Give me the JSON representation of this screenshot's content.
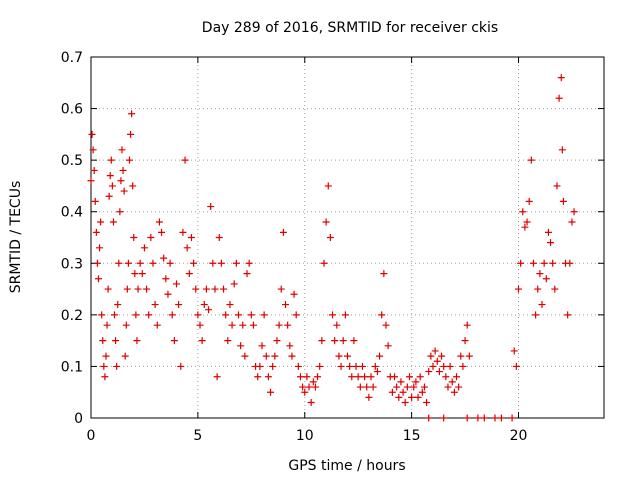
{
  "chart_data": {
    "type": "scatter",
    "title": "Day 289 of 2016, SRMTID for receiver ckis",
    "xlabel": "GPS time / hours",
    "ylabel": "SRMTID / TECUs",
    "xlim": [
      0,
      24
    ],
    "ylim": [
      0,
      0.7
    ],
    "x_ticks": [
      0,
      5,
      10,
      15,
      20
    ],
    "x_tick_labels": [
      "0",
      "5",
      "10",
      "15",
      "20"
    ],
    "y_ticks": [
      0,
      0.1,
      0.2,
      0.3,
      0.4,
      0.5,
      0.6,
      0.7
    ],
    "y_tick_labels": [
      "0",
      "0.1",
      "0.2",
      "0.3",
      "0.4",
      "0.5",
      "0.6",
      "0.7"
    ],
    "grid": true,
    "marker": "+",
    "color": "#e00000",
    "series": [
      {
        "name": "SRMTID",
        "points": [
          [
            0.0,
            0.46
          ],
          [
            0.05,
            0.55
          ],
          [
            0.1,
            0.52
          ],
          [
            0.15,
            0.48
          ],
          [
            0.2,
            0.42
          ],
          [
            0.25,
            0.36
          ],
          [
            0.3,
            0.3
          ],
          [
            0.35,
            0.27
          ],
          [
            0.4,
            0.33
          ],
          [
            0.45,
            0.38
          ],
          [
            0.5,
            0.2
          ],
          [
            0.55,
            0.15
          ],
          [
            0.6,
            0.1
          ],
          [
            0.65,
            0.08
          ],
          [
            0.7,
            0.12
          ],
          [
            0.75,
            0.18
          ],
          [
            0.8,
            0.25
          ],
          [
            0.85,
            0.43
          ],
          [
            0.9,
            0.47
          ],
          [
            0.95,
            0.5
          ],
          [
            1.0,
            0.45
          ],
          [
            1.05,
            0.38
          ],
          [
            1.1,
            0.2
          ],
          [
            1.15,
            0.15
          ],
          [
            1.2,
            0.1
          ],
          [
            1.25,
            0.22
          ],
          [
            1.3,
            0.3
          ],
          [
            1.35,
            0.4
          ],
          [
            1.4,
            0.46
          ],
          [
            1.45,
            0.52
          ],
          [
            1.5,
            0.48
          ],
          [
            1.55,
            0.44
          ],
          [
            1.6,
            0.12
          ],
          [
            1.65,
            0.18
          ],
          [
            1.7,
            0.25
          ],
          [
            1.75,
            0.3
          ],
          [
            1.8,
            0.5
          ],
          [
            1.85,
            0.55
          ],
          [
            1.9,
            0.59
          ],
          [
            1.95,
            0.45
          ],
          [
            2.0,
            0.35
          ],
          [
            2.05,
            0.28
          ],
          [
            2.1,
            0.2
          ],
          [
            2.15,
            0.15
          ],
          [
            2.2,
            0.25
          ],
          [
            2.3,
            0.3
          ],
          [
            2.4,
            0.28
          ],
          [
            2.5,
            0.33
          ],
          [
            2.6,
            0.25
          ],
          [
            2.7,
            0.2
          ],
          [
            2.8,
            0.35
          ],
          [
            2.9,
            0.3
          ],
          [
            3.0,
            0.22
          ],
          [
            3.1,
            0.18
          ],
          [
            3.2,
            0.38
          ],
          [
            3.3,
            0.36
          ],
          [
            3.4,
            0.31
          ],
          [
            3.5,
            0.27
          ],
          [
            3.6,
            0.24
          ],
          [
            3.7,
            0.3
          ],
          [
            3.8,
            0.2
          ],
          [
            3.9,
            0.15
          ],
          [
            4.0,
            0.26
          ],
          [
            4.1,
            0.22
          ],
          [
            4.2,
            0.1
          ],
          [
            4.3,
            0.36
          ],
          [
            4.4,
            0.5
          ],
          [
            4.5,
            0.33
          ],
          [
            4.6,
            0.28
          ],
          [
            4.7,
            0.35
          ],
          [
            4.8,
            0.3
          ],
          [
            4.9,
            0.25
          ],
          [
            5.0,
            0.2
          ],
          [
            5.1,
            0.18
          ],
          [
            5.2,
            0.15
          ],
          [
            5.3,
            0.22
          ],
          [
            5.4,
            0.25
          ],
          [
            5.5,
            0.21
          ],
          [
            5.6,
            0.41
          ],
          [
            5.7,
            0.3
          ],
          [
            5.8,
            0.25
          ],
          [
            5.9,
            0.08
          ],
          [
            6.0,
            0.35
          ],
          [
            6.1,
            0.3
          ],
          [
            6.2,
            0.25
          ],
          [
            6.3,
            0.2
          ],
          [
            6.4,
            0.15
          ],
          [
            6.5,
            0.22
          ],
          [
            6.6,
            0.18
          ],
          [
            6.7,
            0.26
          ],
          [
            6.8,
            0.3
          ],
          [
            6.9,
            0.2
          ],
          [
            7.0,
            0.14
          ],
          [
            7.1,
            0.18
          ],
          [
            7.2,
            0.12
          ],
          [
            7.3,
            0.28
          ],
          [
            7.4,
            0.3
          ],
          [
            7.5,
            0.2
          ],
          [
            7.6,
            0.18
          ],
          [
            7.7,
            0.1
          ],
          [
            7.8,
            0.08
          ],
          [
            7.9,
            0.1
          ],
          [
            8.0,
            0.14
          ],
          [
            8.1,
            0.2
          ],
          [
            8.2,
            0.12
          ],
          [
            8.3,
            0.08
          ],
          [
            8.4,
            0.05
          ],
          [
            8.5,
            0.1
          ],
          [
            8.6,
            0.12
          ],
          [
            8.7,
            0.15
          ],
          [
            8.8,
            0.18
          ],
          [
            8.9,
            0.25
          ],
          [
            9.0,
            0.36
          ],
          [
            9.1,
            0.22
          ],
          [
            9.2,
            0.18
          ],
          [
            9.3,
            0.14
          ],
          [
            9.4,
            0.12
          ],
          [
            9.5,
            0.24
          ],
          [
            9.6,
            0.2
          ],
          [
            9.7,
            0.1
          ],
          [
            9.8,
            0.08
          ],
          [
            9.9,
            0.06
          ],
          [
            10.0,
            0.05
          ],
          [
            10.1,
            0.08
          ],
          [
            10.2,
            0.06
          ],
          [
            10.3,
            0.03
          ],
          [
            10.4,
            0.07
          ],
          [
            10.5,
            0.06
          ],
          [
            10.6,
            0.08
          ],
          [
            10.7,
            0.1
          ],
          [
            10.8,
            0.15
          ],
          [
            10.9,
            0.3
          ],
          [
            11.0,
            0.38
          ],
          [
            11.1,
            0.45
          ],
          [
            11.2,
            0.35
          ],
          [
            11.3,
            0.2
          ],
          [
            11.4,
            0.15
          ],
          [
            11.5,
            0.18
          ],
          [
            11.6,
            0.12
          ],
          [
            11.7,
            0.1
          ],
          [
            11.8,
            0.15
          ],
          [
            11.9,
            0.2
          ],
          [
            12.0,
            0.12
          ],
          [
            12.1,
            0.1
          ],
          [
            12.2,
            0.08
          ],
          [
            12.3,
            0.15
          ],
          [
            12.4,
            0.1
          ],
          [
            12.5,
            0.08
          ],
          [
            12.6,
            0.06
          ],
          [
            12.7,
            0.1
          ],
          [
            12.8,
            0.08
          ],
          [
            12.9,
            0.06
          ],
          [
            13.0,
            0.04
          ],
          [
            13.1,
            0.08
          ],
          [
            13.2,
            0.06
          ],
          [
            13.3,
            0.1
          ],
          [
            13.4,
            0.09
          ],
          [
            13.5,
            0.12
          ],
          [
            13.6,
            0.2
          ],
          [
            13.7,
            0.28
          ],
          [
            13.8,
            0.18
          ],
          [
            13.9,
            0.14
          ],
          [
            14.0,
            0.08
          ],
          [
            14.1,
            0.05
          ],
          [
            14.2,
            0.08
          ],
          [
            14.3,
            0.06
          ],
          [
            14.4,
            0.04
          ],
          [
            14.5,
            0.07
          ],
          [
            14.6,
            0.05
          ],
          [
            14.7,
            0.03
          ],
          [
            14.8,
            0.06
          ],
          [
            14.9,
            0.08
          ],
          [
            15.0,
            0.04
          ],
          [
            15.1,
            0.06
          ],
          [
            15.2,
            0.07
          ],
          [
            15.3,
            0.04
          ],
          [
            15.4,
            0.08
          ],
          [
            15.5,
            0.05
          ],
          [
            15.6,
            0.06
          ],
          [
            15.7,
            0.03
          ],
          [
            15.8,
            0.09
          ],
          [
            15.9,
            0.12
          ],
          [
            16.0,
            0.1
          ],
          [
            16.1,
            0.13
          ],
          [
            16.2,
            0.11
          ],
          [
            16.3,
            0.09
          ],
          [
            16.4,
            0.12
          ],
          [
            16.5,
            0.1
          ],
          [
            16.6,
            0.08
          ],
          [
            16.7,
            0.06
          ],
          [
            16.8,
            0.1
          ],
          [
            16.9,
            0.07
          ],
          [
            17.0,
            0.05
          ],
          [
            17.1,
            0.08
          ],
          [
            17.2,
            0.06
          ],
          [
            17.3,
            0.12
          ],
          [
            17.4,
            0.1
          ],
          [
            17.5,
            0.15
          ],
          [
            17.6,
            0.18
          ],
          [
            17.7,
            0.12
          ],
          [
            19.8,
            0.13
          ],
          [
            19.9,
            0.1
          ],
          [
            20.0,
            0.25
          ],
          [
            20.1,
            0.3
          ],
          [
            20.2,
            0.4
          ],
          [
            20.3,
            0.37
          ],
          [
            20.4,
            0.38
          ],
          [
            20.5,
            0.42
          ],
          [
            20.6,
            0.5
          ],
          [
            20.7,
            0.3
          ],
          [
            20.8,
            0.2
          ],
          [
            20.9,
            0.25
          ],
          [
            21.0,
            0.28
          ],
          [
            21.1,
            0.22
          ],
          [
            21.2,
            0.3
          ],
          [
            21.3,
            0.27
          ],
          [
            21.4,
            0.36
          ],
          [
            21.5,
            0.34
          ],
          [
            21.6,
            0.3
          ],
          [
            21.7,
            0.25
          ],
          [
            21.8,
            0.45
          ],
          [
            21.9,
            0.62
          ],
          [
            22.0,
            0.66
          ],
          [
            22.05,
            0.52
          ],
          [
            22.1,
            0.42
          ],
          [
            22.2,
            0.3
          ],
          [
            22.3,
            0.2
          ],
          [
            22.4,
            0.3
          ],
          [
            22.5,
            0.38
          ],
          [
            22.6,
            0.4
          ],
          [
            15.8,
            0.0
          ],
          [
            16.5,
            0.0
          ],
          [
            17.6,
            0.0
          ],
          [
            18.1,
            0.0
          ],
          [
            18.4,
            0.0
          ],
          [
            18.9,
            0.0
          ],
          [
            19.2,
            0.0
          ],
          [
            19.7,
            0.0
          ]
        ]
      }
    ]
  }
}
